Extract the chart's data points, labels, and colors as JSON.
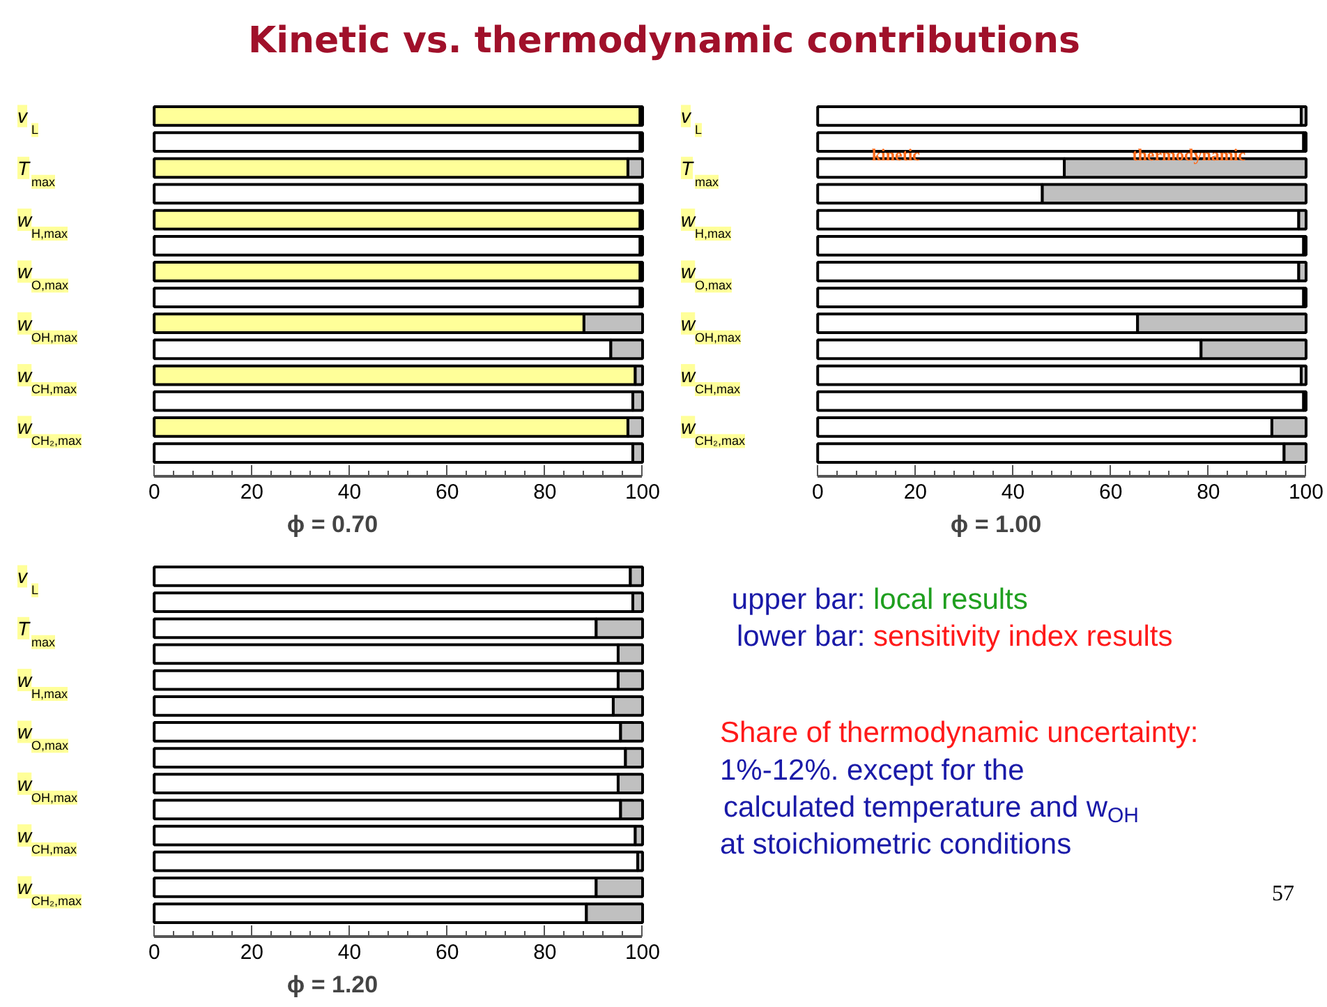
{
  "chart_data": [
    {
      "type": "bar",
      "orientation": "horizontal",
      "stacked": true,
      "xlabel": "ϕ = 0.70",
      "xlim": [
        0,
        100
      ],
      "xticks": [
        0,
        20,
        40,
        60,
        80,
        100
      ],
      "grid": false,
      "categories": [
        "v$_{L}$",
        null,
        "T$_{max}$",
        null,
        "w$_{H,max}$",
        null,
        "w$_{O,max}$",
        null,
        "w$_{OH,max}$",
        null,
        "w$_{CH,max}$",
        null,
        "w$_{CH₂,max}$",
        null
      ],
      "series": [
        {
          "colors": [
            "#ffff99",
            "#ffffff",
            "#ffff99",
            "#ffffff",
            "#ffff99",
            "#ffffff",
            "#ffff99",
            "#ffffff",
            "#ffff99",
            "#ffffff",
            "#ffff99",
            "#ffffff",
            "#ffff99",
            "#ffffff"
          ],
          "values": [
            99.5,
            99.5,
            97,
            99.5,
            99.5,
            99.5,
            99.5,
            99.5,
            88,
            93.5,
            98.5,
            98,
            97,
            98
          ]
        },
        {
          "color": "#c0c0c0",
          "values": [
            0.5,
            0.5,
            3,
            0.5,
            0.5,
            0.5,
            0.5,
            0.5,
            12,
            6.5,
            1.5,
            2,
            3,
            2
          ]
        }
      ]
    },
    {
      "type": "bar",
      "orientation": "horizontal",
      "stacked": true,
      "xlabel": "ϕ = 1.00",
      "xlim": [
        0,
        100
      ],
      "xticks": [
        0,
        20,
        40,
        60,
        80,
        100
      ],
      "grid": false,
      "categories": [
        "v$_{L}$",
        null,
        "T$_{max}$",
        null,
        "w$_{H,max}$",
        null,
        "w$_{O,max}$",
        null,
        "w$_{OH,max}$",
        null,
        "w$_{CH,max}$",
        null,
        "w$_{CH₂,max}$",
        null
      ],
      "annotations": [
        "kinetic",
        "thermodynamic"
      ],
      "series": [
        {
          "color": "#ffffff",
          "values": [
            99,
            99.5,
            50.5,
            46,
            98.5,
            99.5,
            98.5,
            99.5,
            65.5,
            78.5,
            99,
            99.5,
            93,
            95.5
          ]
        },
        {
          "color": "#c0c0c0",
          "values": [
            1,
            0.5,
            49.5,
            54,
            1.5,
            0.5,
            1.5,
            0.5,
            34.5,
            21.5,
            1,
            0.5,
            7,
            4.5
          ]
        }
      ]
    },
    {
      "type": "bar",
      "orientation": "horizontal",
      "stacked": true,
      "xlabel": "ϕ = 1.20",
      "xlim": [
        0,
        100
      ],
      "xticks": [
        0,
        20,
        40,
        60,
        80,
        100
      ],
      "grid": false,
      "categories": [
        "v$_{L}$",
        null,
        "T$_{max}$",
        null,
        "w$_{H,max}$",
        null,
        "w$_{O,max}$",
        null,
        "w$_{OH,max}$",
        null,
        "w$_{CH,max}$",
        null,
        "w$_{CH₂,max}$",
        null
      ],
      "series": [
        {
          "color": "#ffffff",
          "values": [
            97.5,
            98,
            90.5,
            95,
            95,
            94,
            95.5,
            96.5,
            95,
            95.5,
            98.5,
            99,
            90.5,
            88.5
          ]
        },
        {
          "color": "#c0c0c0",
          "values": [
            2.5,
            2,
            9.5,
            5,
            5,
            6,
            4.5,
            3.5,
            5,
            4.5,
            1.5,
            1,
            9.5,
            11.5
          ]
        }
      ]
    },
    {
      "type": "other",
      "title": "Kinetic vs. thermodynamic contributions",
      "annotations": [
        "upper bar: ",
        "local results",
        "lower bar: ",
        "sensitivity index results",
        "Share of thermodynamic uncertainty:",
        "1%-12%. except for the",
        "calculated temperature and w$_{OH}$",
        "at stoichiometric conditions",
        "57"
      ]
    }
  ]
}
